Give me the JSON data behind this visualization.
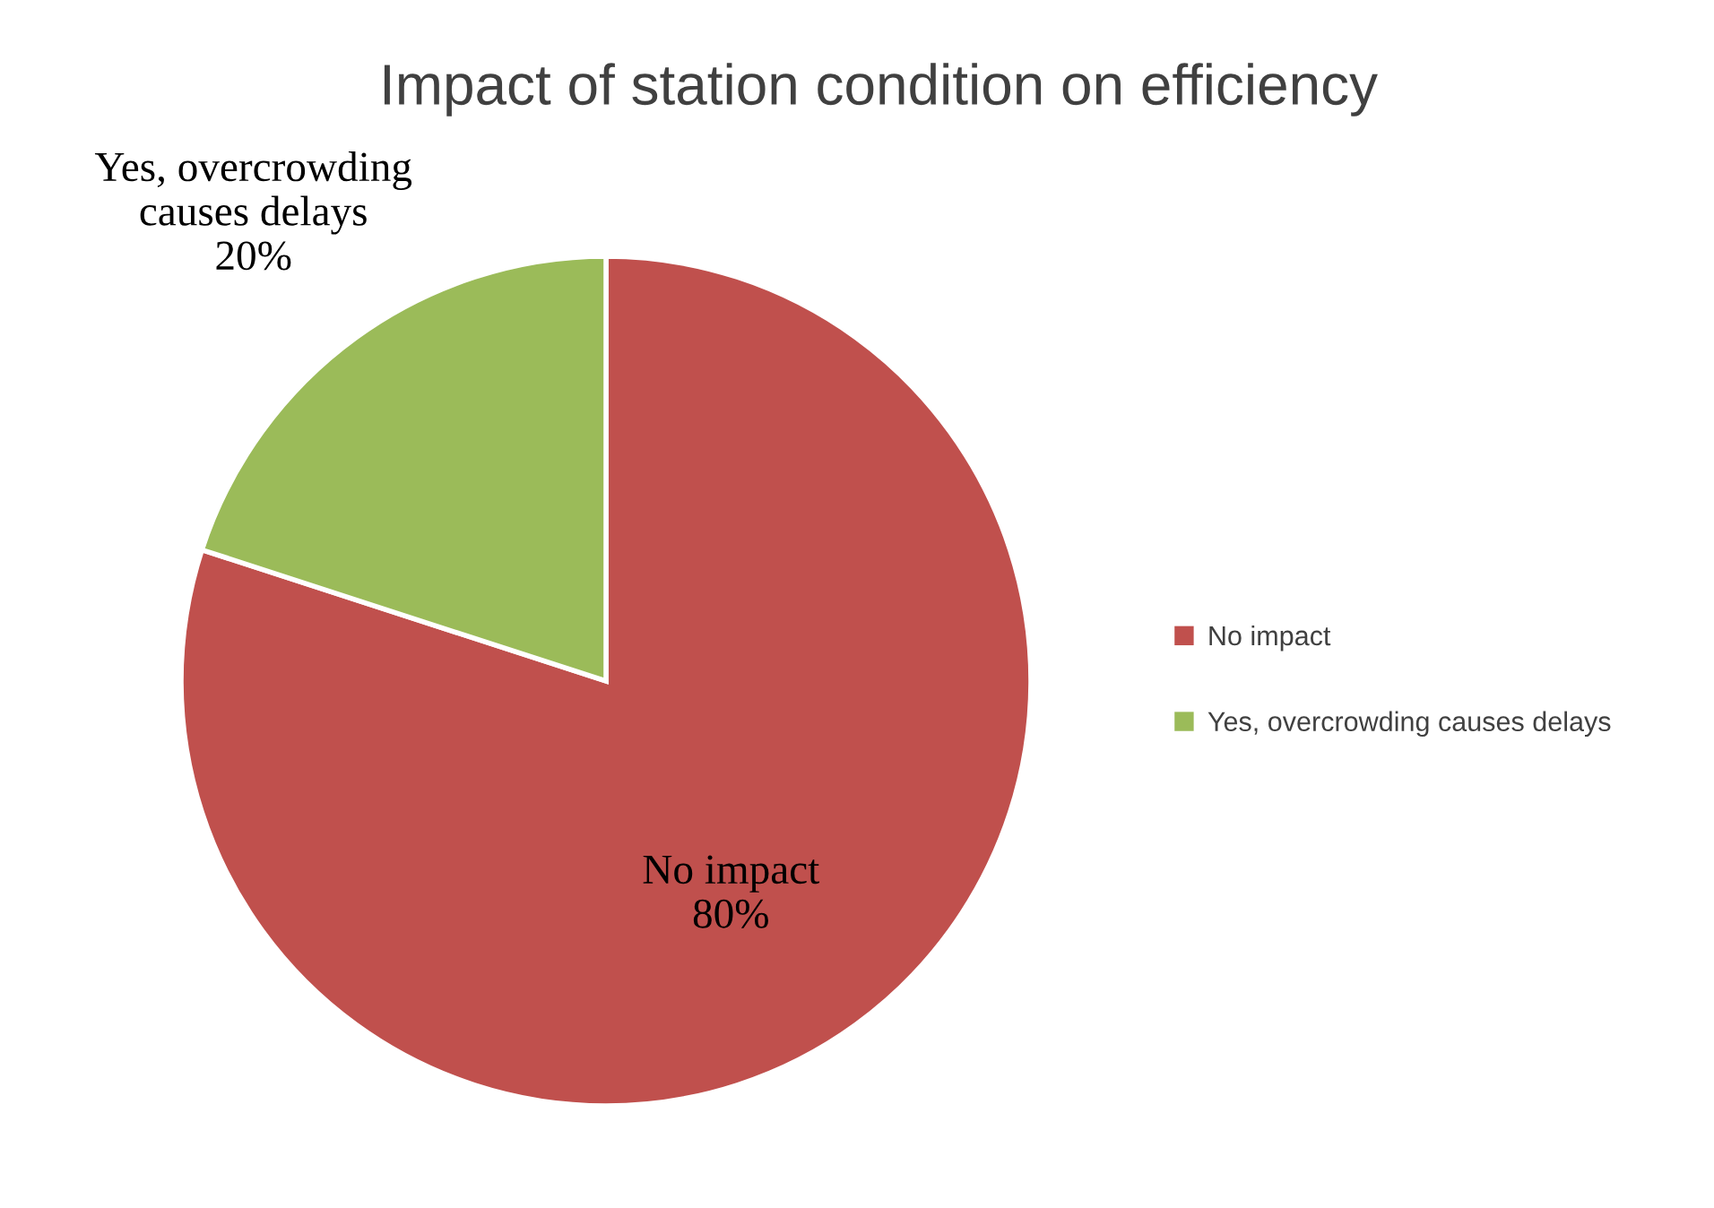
{
  "chart_data": {
    "type": "pie",
    "title": "Impact of station condition on efficiency",
    "categories": [
      "No impact",
      "Yes, overcrowding causes delays"
    ],
    "values": [
      80,
      20
    ],
    "colors": [
      "#c0504d",
      "#9bbb59"
    ],
    "value_labels": [
      "80%",
      "20%"
    ],
    "legend": "right"
  }
}
